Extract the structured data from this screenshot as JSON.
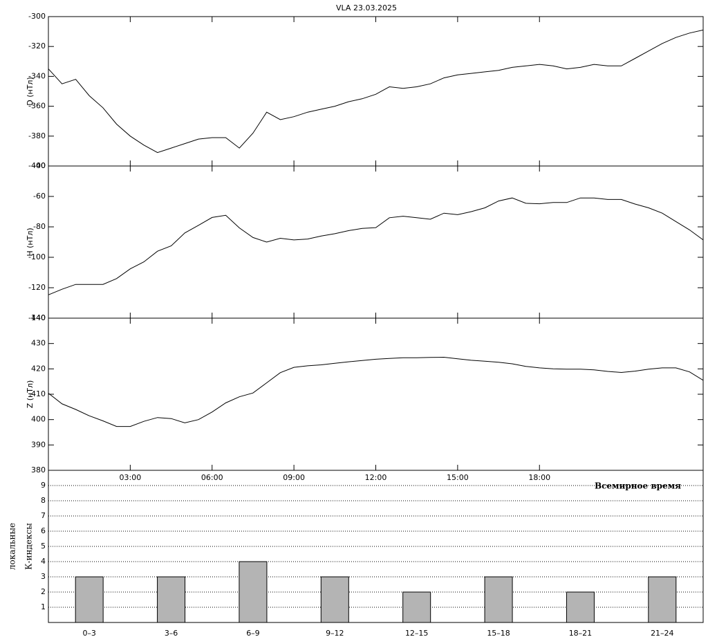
{
  "chart_data": [
    {
      "type": "line",
      "title": "VLA   23.03.2025",
      "ylabel": "D (нТл)",
      "x": [
        0,
        0.5,
        1,
        1.5,
        2,
        2.5,
        3,
        3.5,
        4,
        4.5,
        5,
        5.5,
        6,
        6.5,
        7,
        7.5,
        8,
        8.5,
        9,
        9.5,
        10,
        10.5,
        11,
        11.5,
        12,
        12.5,
        13,
        13.5,
        14,
        14.5,
        15,
        15.5,
        16,
        16.5,
        17,
        17.5,
        18,
        18.5,
        19,
        19.5,
        20,
        20.5,
        21,
        21.5,
        22,
        22.5,
        23,
        23.5,
        24
      ],
      "xlim": [
        0,
        24
      ],
      "ylim": [
        -400,
        -300
      ],
      "yticks": [
        -300,
        -320,
        -340,
        -360,
        -380,
        -400
      ],
      "series": [
        {
          "color": "#000000",
          "values": [
            -335,
            -345,
            -342,
            -353,
            -361,
            -372,
            -380,
            -386,
            -391,
            -388,
            -385,
            -382,
            -381,
            -381,
            -388,
            -378,
            -364,
            -369,
            -367,
            -364,
            -362,
            -360,
            -357,
            -355,
            -352,
            -347,
            -348,
            -347,
            -345,
            -341,
            -339,
            -338,
            -337,
            -336,
            -334,
            -333,
            -332,
            -333,
            -335,
            -334,
            -332,
            -333,
            -333,
            -328,
            -323,
            -318,
            -314,
            -311,
            -309
          ]
        }
      ]
    },
    {
      "type": "line",
      "ylabel": "H (нТл)",
      "x": [
        0,
        0.5,
        1,
        1.5,
        2,
        2.5,
        3,
        3.5,
        4,
        4.5,
        5,
        5.5,
        6,
        6.5,
        7,
        7.5,
        8,
        8.5,
        9,
        9.5,
        10,
        10.5,
        11,
        11.5,
        12,
        12.5,
        13,
        13.5,
        14,
        14.5,
        15,
        15.5,
        16,
        16.5,
        17,
        17.5,
        18,
        18.5,
        19,
        19.5,
        20,
        20.5,
        21,
        21.5,
        22,
        22.5,
        23,
        23.5,
        24
      ],
      "xlim": [
        0,
        24
      ],
      "ylim": [
        -140,
        -40
      ],
      "yticks": [
        -40,
        -60,
        -80,
        -100,
        -120,
        -140
      ],
      "series": [
        {
          "color": "#000000",
          "values": [
            -124.7,
            -121,
            -117.8,
            -117.8,
            -117.8,
            -114,
            -107.6,
            -103,
            -96,
            -92.5,
            -84,
            -79,
            -73.8,
            -72.4,
            -80.7,
            -87,
            -90,
            -87.5,
            -88.6,
            -88,
            -86,
            -84.5,
            -82.5,
            -81,
            -80.5,
            -74,
            -73,
            -74,
            -75,
            -71,
            -72,
            -70,
            -67.5,
            -63,
            -61,
            -64.5,
            -64.8,
            -64,
            -64,
            -61,
            -61,
            -62,
            -62,
            -65,
            -67.5,
            -71,
            -76.5,
            -82,
            -88.6
          ]
        }
      ]
    },
    {
      "type": "line",
      "ylabel": "Z (нТл)",
      "xlabel": "Всемирное время",
      "x": [
        0,
        0.5,
        1,
        1.5,
        2,
        2.5,
        3,
        3.5,
        4,
        4.5,
        5,
        5.5,
        6,
        6.5,
        7,
        7.5,
        8,
        8.5,
        9,
        9.5,
        10,
        10.5,
        11,
        11.5,
        12,
        12.5,
        13,
        13.5,
        14,
        14.5,
        15,
        15.5,
        16,
        16.5,
        17,
        17.5,
        18,
        18.5,
        19,
        19.5,
        20,
        20.5,
        21,
        21.5,
        22,
        22.5,
        23,
        23.5,
        24
      ],
      "xlim": [
        0,
        24
      ],
      "ylim": [
        380,
        440
      ],
      "yticks": [
        380,
        390,
        400,
        410,
        420,
        430,
        440
      ],
      "xticks": [
        {
          "value": 3,
          "label": "03:00"
        },
        {
          "value": 6,
          "label": "06:00"
        },
        {
          "value": 9,
          "label": "09:00"
        },
        {
          "value": 12,
          "label": "12:00"
        },
        {
          "value": 15,
          "label": "15:00"
        },
        {
          "value": 18,
          "label": "18:00"
        }
      ],
      "series": [
        {
          "color": "#000000",
          "values": [
            410.4,
            406.2,
            404,
            401.5,
            399.5,
            397.3,
            397.3,
            399.3,
            400.8,
            400.4,
            398.7,
            400,
            403,
            406.6,
            409,
            410.5,
            414.5,
            418.5,
            420.6,
            421.2,
            421.6,
            422.2,
            422.8,
            423.3,
            423.8,
            424.1,
            424.4,
            424.4,
            424.5,
            424.6,
            424,
            423.4,
            423,
            422.6,
            422,
            421,
            420.4,
            420,
            419.9,
            419.9,
            419.6,
            419,
            418.6,
            419.1,
            419.9,
            420.4,
            420.4,
            418.8,
            415.5
          ]
        }
      ]
    },
    {
      "type": "bar",
      "ylabel": [
        "локальные",
        "К-индексы"
      ],
      "categories": [
        "0–3",
        "3–6",
        "6–9",
        "9–12",
        "12–15",
        "15–18",
        "18–21",
        "21–24"
      ],
      "values": [
        3,
        3,
        4,
        3,
        2,
        3,
        2,
        3
      ],
      "color": "#b4b4b4",
      "ylim": [
        0,
        10
      ],
      "yticks": [
        1,
        2,
        3,
        4,
        5,
        6,
        7,
        8,
        9
      ],
      "grid": true
    }
  ]
}
